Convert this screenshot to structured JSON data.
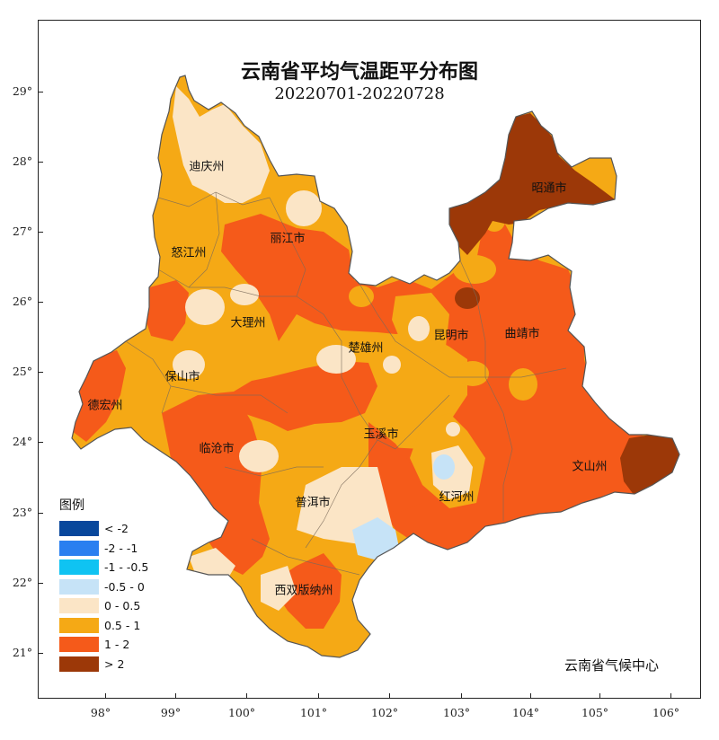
{
  "title": "云南省平均气温距平分布图",
  "subtitle": "20220701-20220728",
  "credit": "云南省气候中心",
  "y_axis": [
    "29°",
    "28°",
    "27°",
    "26°",
    "25°",
    "24°",
    "23°",
    "22°",
    "21°"
  ],
  "x_axis": [
    "98°",
    "99°",
    "100°",
    "101°",
    "102°",
    "103°",
    "104°",
    "105°",
    "106°"
  ],
  "cities": [
    "迪庆州",
    "怒江州",
    "丽江市",
    "大理州",
    "楚雄州",
    "昆明市",
    "曲靖市",
    "昭通市",
    "保山市",
    "德宏州",
    "临沧市",
    "玉溪市",
    "红河州",
    "文山州",
    "普洱市",
    "西双版纳州"
  ],
  "legend": {
    "title": "图例",
    "items": [
      {
        "label": "< -2",
        "color": "#08479c"
      },
      {
        "label": "-2 - -1",
        "color": "#2a7ff0"
      },
      {
        "label": "-1 - -0.5",
        "color": "#0fc3f2"
      },
      {
        "label": "-0.5 - 0",
        "color": "#c6e3f7"
      },
      {
        "label": "0 - 0.5",
        "color": "#fbe5c6"
      },
      {
        "label": "0.5 - 1",
        "color": "#f5a915"
      },
      {
        "label": "1 - 2",
        "color": "#f55a1a"
      },
      {
        "label": "> 2",
        "color": "#9c3808"
      }
    ]
  }
}
